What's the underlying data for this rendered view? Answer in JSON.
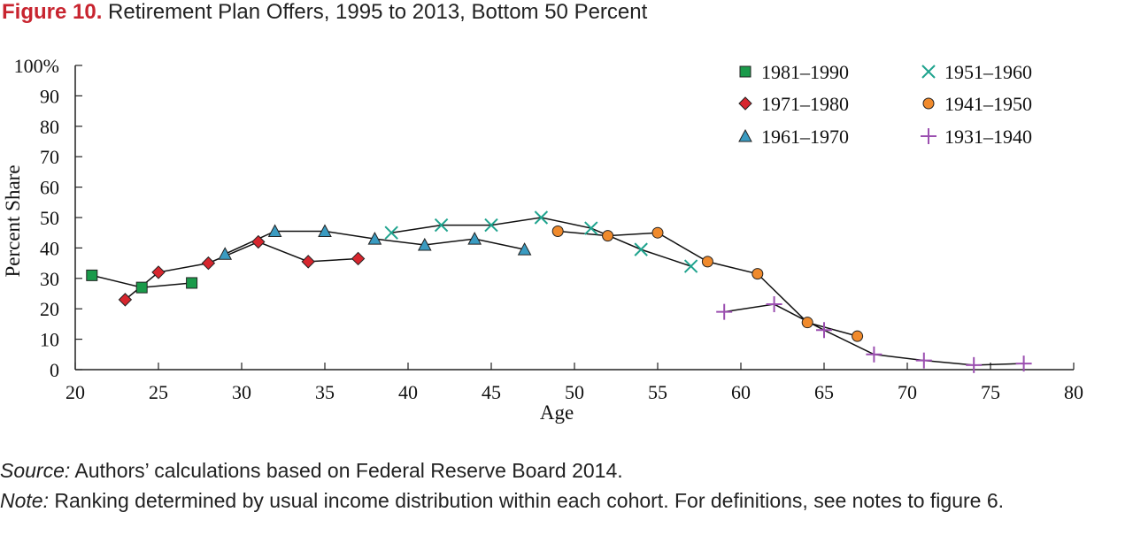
{
  "figure": {
    "label": "Figure 10.",
    "title": "Retirement Plan Offers, 1995 to 2013, Bottom 50 Percent"
  },
  "chart_data": {
    "type": "scatter",
    "xlabel": "Age",
    "ylabel": "Percent Share",
    "xlim": [
      20,
      80
    ],
    "ylim": [
      0,
      100
    ],
    "xticks": [
      20,
      25,
      30,
      35,
      40,
      45,
      50,
      55,
      60,
      65,
      70,
      75,
      80
    ],
    "yticks": [
      0,
      10,
      20,
      30,
      40,
      50,
      60,
      70,
      80,
      90,
      100
    ],
    "ytick_labels": [
      "0",
      "10",
      "20",
      "30",
      "40",
      "50",
      "60",
      "70",
      "80",
      "90",
      "100%"
    ],
    "legend_position": "top-right",
    "series": [
      {
        "name": "1981–1990",
        "marker": "square",
        "color": "#1a9a4a",
        "x": [
          21,
          24,
          27
        ],
        "y": [
          31,
          27,
          28.5
        ]
      },
      {
        "name": "1951–1960",
        "marker": "x",
        "color": "#1fa38e",
        "x": [
          39,
          42,
          45,
          48,
          51,
          54,
          57
        ],
        "y": [
          45,
          47.5,
          47.5,
          50,
          46.5,
          39.5,
          34
        ]
      },
      {
        "name": "1971–1980",
        "marker": "diamond",
        "color": "#d7262e",
        "x": [
          23,
          25,
          28,
          31,
          34,
          37
        ],
        "y": [
          23,
          32,
          35,
          42,
          35.5,
          36.5
        ]
      },
      {
        "name": "1941–1950",
        "marker": "circle",
        "color": "#f08a2c",
        "x": [
          49,
          52,
          55,
          58,
          61,
          64,
          67
        ],
        "y": [
          45.5,
          44,
          45,
          35.5,
          31.5,
          15.5,
          11
        ]
      },
      {
        "name": "1961–1970",
        "marker": "triangle",
        "color": "#3a9bc1",
        "x": [
          29,
          32,
          35,
          38,
          41,
          44,
          47
        ],
        "y": [
          38,
          45.5,
          45.5,
          43,
          41,
          43,
          39.5
        ]
      },
      {
        "name": "1931–1940",
        "marker": "plus",
        "color": "#9b4fb0",
        "x": [
          59,
          62,
          65,
          68,
          71,
          74,
          77
        ],
        "y": [
          19,
          21.5,
          13,
          5,
          3,
          1.5,
          2
        ]
      }
    ]
  },
  "footer": {
    "source_label": "Source:",
    "source_text": " Authors’ calculations based on Federal Reserve Board 2014.",
    "note_label": "Note:",
    "note_text": " Ranking determined by usual income distribution within each cohort. For definitions, see notes to figure 6."
  }
}
